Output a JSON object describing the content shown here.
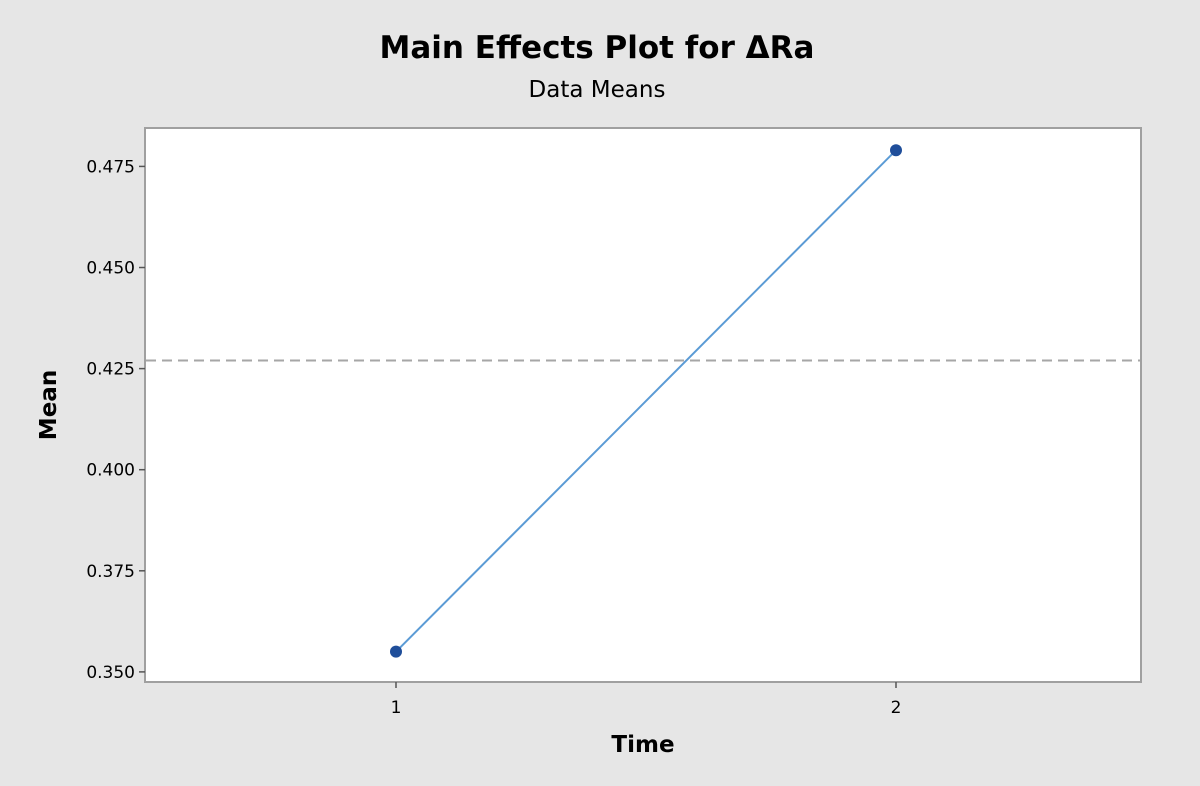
{
  "chart_data": {
    "type": "line",
    "title": "Main Effects Plot for ΔRa",
    "subtitle": "Data Means",
    "xlabel": "Time",
    "ylabel": "Mean",
    "categories": [
      "1",
      "2"
    ],
    "series": [
      {
        "values": [
          0.355,
          0.479
        ]
      }
    ],
    "reference_line": {
      "value": 0.427,
      "style": "dashed"
    },
    "ylim": [
      0.3475,
      0.4845
    ],
    "yticks": [
      0.35,
      0.375,
      0.4,
      0.425,
      0.45,
      0.475
    ],
    "ytick_labels": [
      "0.350",
      "0.375",
      "0.400",
      "0.425",
      "0.450",
      "0.475"
    ],
    "grid": false,
    "colors": {
      "line": "#5b9bd5",
      "marker": "#1f4e9a",
      "reference": "#a6a6a6",
      "plot_background": "#ffffff",
      "page_background": "#e6e6e6",
      "frame": "#a0a0a0"
    }
  }
}
